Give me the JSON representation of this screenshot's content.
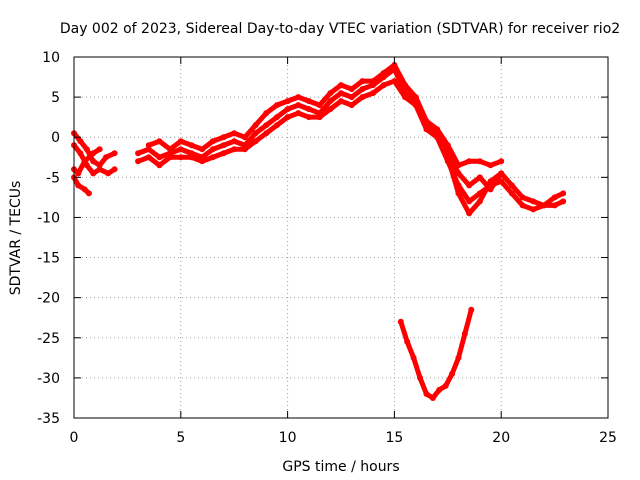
{
  "chart_data": {
    "type": "scatter",
    "title": "Day 002 of 2023, Sidereal Day-to-day VTEC variation (SDTVAR) for receiver rio2",
    "xlabel": "GPS time / hours",
    "ylabel": "SDTVAR / TECUs",
    "xlim": [
      0,
      25
    ],
    "ylim": [
      -35,
      10
    ],
    "xticks": [
      0,
      5,
      10,
      15,
      20,
      25
    ],
    "yticks": [
      10,
      5,
      0,
      -5,
      -10,
      -15,
      -20,
      -25,
      -30,
      -35
    ],
    "grid": true,
    "legend": "none",
    "series_color": "#ff0000",
    "series": [
      {
        "x": [
          0.0,
          0.3,
          0.6,
          0.9,
          1.2,
          1.5,
          1.9
        ],
        "y": [
          0.5,
          -0.5,
          -1.5,
          -3.0,
          -3.5,
          -2.5,
          -2.0
        ]
      },
      {
        "x": [
          0.0,
          0.3,
          0.6,
          0.9,
          1.2,
          1.6,
          1.9
        ],
        "y": [
          -1.0,
          -2.0,
          -3.5,
          -4.5,
          -4.0,
          -4.5,
          -4.0
        ]
      },
      {
        "x": [
          0.0,
          0.2,
          0.5,
          0.7
        ],
        "y": [
          -5.0,
          -6.0,
          -6.5,
          -7.0
        ]
      },
      {
        "x": [
          0.0,
          0.2,
          0.5,
          0.9,
          1.2
        ],
        "y": [
          -4.0,
          -4.5,
          -3.0,
          -2.0,
          -1.5
        ]
      },
      {
        "x": [
          3.0,
          3.5,
          4.0,
          4.5,
          5.0,
          5.5,
          6.0,
          6.5,
          7.0,
          7.5,
          8.0,
          8.5,
          9.0,
          9.5,
          10.0,
          10.5,
          11.0,
          11.5,
          12.0,
          12.5,
          13.0,
          13.5,
          14.0,
          14.5,
          15.0,
          15.5,
          16.0,
          16.5,
          17.0,
          17.5,
          18.0,
          18.5,
          19.0,
          19.5,
          20.0,
          20.5,
          21.0,
          21.5,
          22.0,
          22.5,
          22.9
        ],
        "y": [
          -2.0,
          -1.5,
          -2.5,
          -2.0,
          -1.5,
          -2.0,
          -2.5,
          -1.5,
          -1.0,
          -0.5,
          -1.0,
          0.5,
          1.5,
          2.5,
          3.5,
          4.0,
          3.5,
          3.0,
          4.5,
          5.5,
          5.0,
          6.0,
          6.5,
          7.5,
          8.5,
          5.5,
          4.5,
          1.5,
          0.5,
          -2.0,
          -4.5,
          -6.0,
          -5.0,
          -6.5,
          -4.5,
          -6.0,
          -7.5,
          -8.0,
          -8.5,
          -7.5,
          -7.0
        ]
      },
      {
        "x": [
          3.0,
          3.5,
          4.0,
          4.5,
          5.0,
          5.5,
          6.0,
          6.5,
          7.0,
          7.5,
          8.0,
          8.5,
          9.0,
          9.5,
          10.0,
          10.5,
          11.0,
          11.5,
          12.0,
          12.5,
          13.0,
          13.5,
          14.0,
          14.5,
          15.0,
          15.5,
          16.0,
          16.5,
          17.0,
          17.5,
          18.0,
          18.5,
          19.0,
          19.5,
          20.0,
          20.5,
          21.0,
          21.5,
          22.0,
          22.5,
          22.9
        ],
        "y": [
          -3.0,
          -2.5,
          -3.5,
          -2.5,
          -2.5,
          -2.5,
          -3.0,
          -2.5,
          -2.0,
          -1.5,
          -1.5,
          -0.5,
          0.5,
          1.5,
          2.5,
          3.0,
          2.5,
          2.5,
          3.5,
          4.5,
          4.0,
          5.0,
          5.5,
          6.5,
          7.0,
          5.0,
          4.0,
          1.0,
          0.0,
          -3.0,
          -6.0,
          -8.0,
          -7.0,
          -6.0,
          -5.5,
          -7.0,
          -8.5,
          -9.0,
          -8.5,
          -8.5,
          -8.0
        ]
      },
      {
        "x": [
          3.5,
          4.0,
          4.5,
          5.0,
          5.5,
          6.0,
          6.5,
          7.0,
          7.5,
          8.0,
          8.5,
          9.0,
          9.5,
          10.0,
          10.5,
          11.0,
          11.5,
          12.0,
          12.5,
          13.0,
          13.5,
          14.0,
          14.5,
          15.0,
          15.5,
          16.0,
          16.5,
          17.0,
          17.5,
          18.0,
          18.5,
          19.0,
          19.5,
          20.0
        ],
        "y": [
          -1.0,
          -0.5,
          -1.5,
          -0.5,
          -1.0,
          -1.5,
          -0.5,
          0.0,
          0.5,
          0.0,
          1.5,
          3.0,
          4.0,
          4.5,
          5.0,
          4.5,
          4.0,
          5.5,
          6.5,
          6.0,
          7.0,
          7.0,
          8.0,
          9.0,
          6.5,
          5.0,
          2.0,
          1.0,
          -1.0,
          -3.5,
          -3.0,
          -3.0,
          -3.5,
          -3.0
        ]
      },
      {
        "x": [
          17.5,
          18.0,
          18.5,
          19.0,
          19.5,
          20.0
        ],
        "y": [
          -2.5,
          -7.0,
          -9.5,
          -8.0,
          -5.5,
          -4.5
        ]
      },
      {
        "x": [
          15.3,
          15.6,
          15.9,
          16.2,
          16.5,
          16.8,
          17.1,
          17.4,
          17.7,
          18.0,
          18.3,
          18.6
        ],
        "y": [
          -23.0,
          -25.5,
          -27.5,
          -30.0,
          -32.0,
          -32.5,
          -31.5,
          -31.0,
          -29.5,
          -27.5,
          -24.5,
          -21.5
        ]
      }
    ]
  }
}
